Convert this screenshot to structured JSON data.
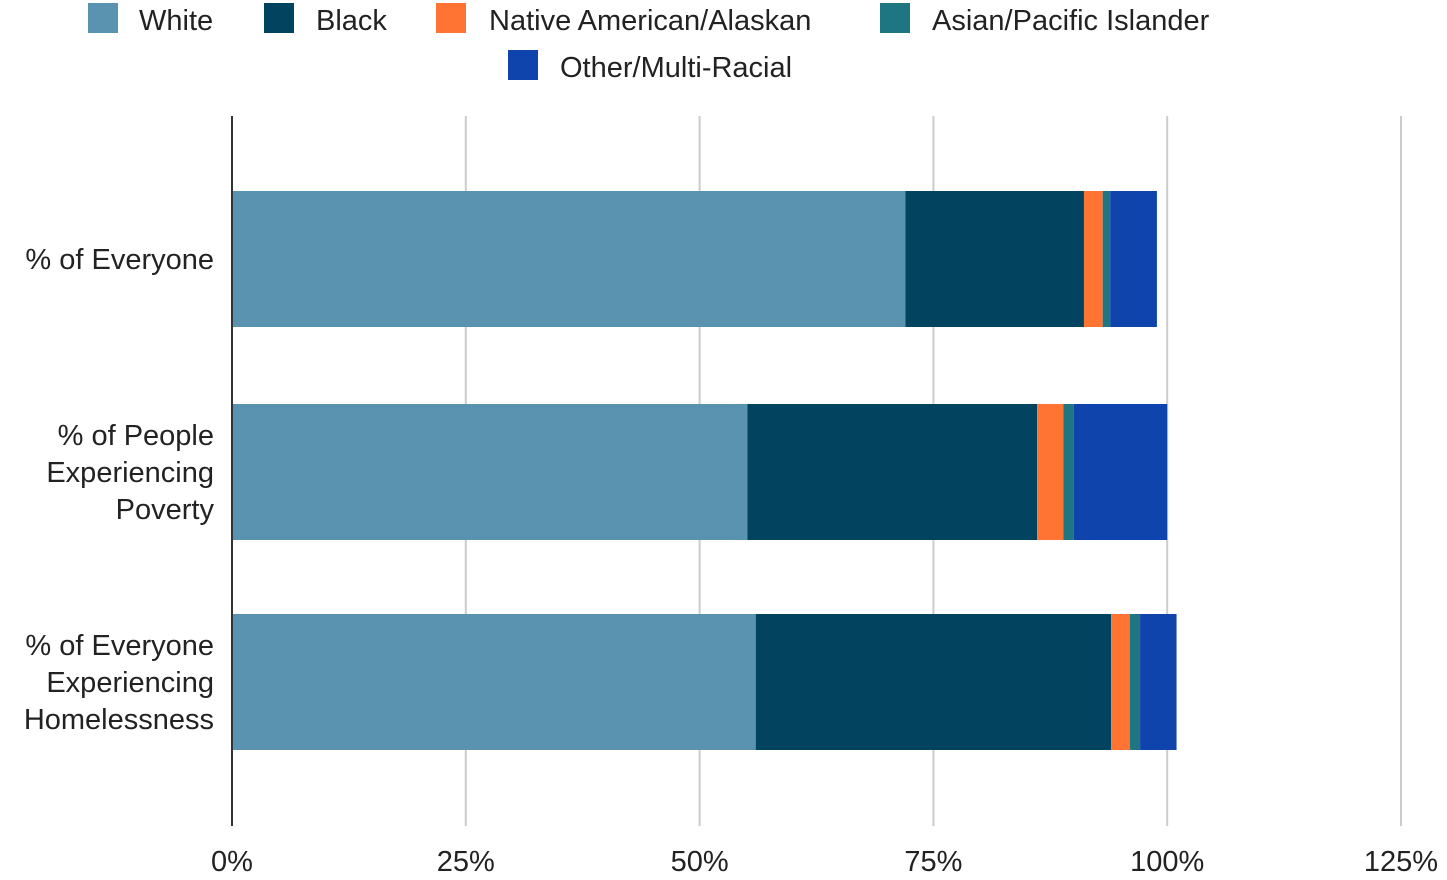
{
  "chart_data": {
    "type": "bar",
    "orientation": "horizontal",
    "stacked": true,
    "title": "",
    "xlabel": "",
    "ylabel": "",
    "categories": [
      [
        "% of Everyone"
      ],
      [
        "% of People",
        "Experiencing",
        "Poverty"
      ],
      [
        "% of Everyone",
        "Experiencing",
        "Homelessness"
      ]
    ],
    "series": [
      {
        "name": "White",
        "color": "#5a93b0",
        "values": [
          72.0,
          55.1,
          56.0
        ]
      },
      {
        "name": "Black",
        "color": "#02445f",
        "values": [
          19.1,
          31.0,
          38.0
        ]
      },
      {
        "name": "Native American/Alaskan",
        "color": "#ff7433",
        "values": [
          2.0,
          2.8,
          2.0
        ]
      },
      {
        "name": "Asian/Pacific Islander",
        "color": "#1e7683",
        "values": [
          0.8,
          1.1,
          1.1
        ]
      },
      {
        "name": "Other/Multi-Racial",
        "color": "#0e44ac",
        "values": [
          5.0,
          10.0,
          3.9
        ]
      }
    ],
    "xlim": [
      0,
      125
    ],
    "x_ticks": [
      0,
      25,
      50,
      75,
      100,
      125
    ],
    "x_tick_labels": [
      "0%",
      "25%",
      "50%",
      "75%",
      "100%",
      "125%"
    ],
    "grid": true,
    "legend_position": "top"
  }
}
